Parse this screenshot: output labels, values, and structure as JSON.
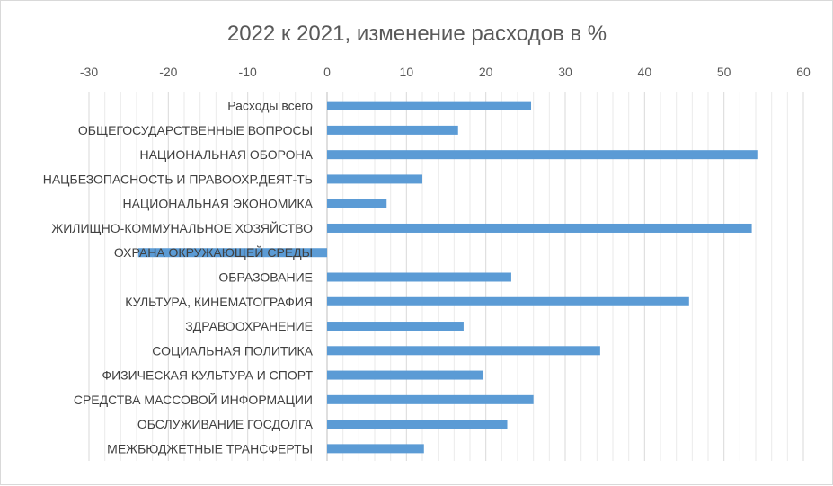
{
  "chart_data": {
    "type": "bar",
    "orientation": "horizontal",
    "title": "2022 к 2021, изменение расходов в %",
    "xlabel": "",
    "ylabel": "",
    "xlim": [
      -30,
      60
    ],
    "xticks": [
      -30,
      -20,
      -10,
      0,
      10,
      20,
      30,
      40,
      50,
      60
    ],
    "axis_position": "top",
    "grid": true,
    "bar_color": "#5b9bd5",
    "categories": [
      "Расходы всего",
      "ОБЩЕГОСУДАРСТВЕННЫЕ ВОПРОСЫ",
      "НАЦИОНАЛЬНАЯ ОБОРОНА",
      "НАЦБЕЗОПАСНОСТЬ И ПРАВООХР.ДЕЯТ-ТЬ",
      "НАЦИОНАЛЬНАЯ ЭКОНОМИКА",
      "ЖИЛИЩНО-КОММУНАЛЬНОЕ ХОЗЯЙСТВО",
      "ОХРАНА ОКРУЖАЮЩЕЙ СРЕДЫ",
      "ОБРАЗОВАНИЕ",
      "КУЛЬТУРА, КИНЕМАТОГРАФИЯ",
      "ЗДРАВООХРАНЕНИЕ",
      "СОЦИАЛЬНАЯ ПОЛИТИКА",
      "ФИЗИЧЕСКАЯ КУЛЬТУРА И СПОРТ",
      "СРЕДСТВА МАССОВОЙ ИНФОРМАЦИИ",
      "ОБСЛУЖИВАНИЕ ГОСДОЛГА",
      "МЕЖБЮДЖЕТНЫЕ ТРАНСФЕРТЫ"
    ],
    "values": [
      25.7,
      16.5,
      54.2,
      12.0,
      7.5,
      53.5,
      -23.8,
      23.2,
      45.6,
      17.2,
      34.4,
      19.7,
      26.0,
      22.7,
      12.2
    ]
  }
}
